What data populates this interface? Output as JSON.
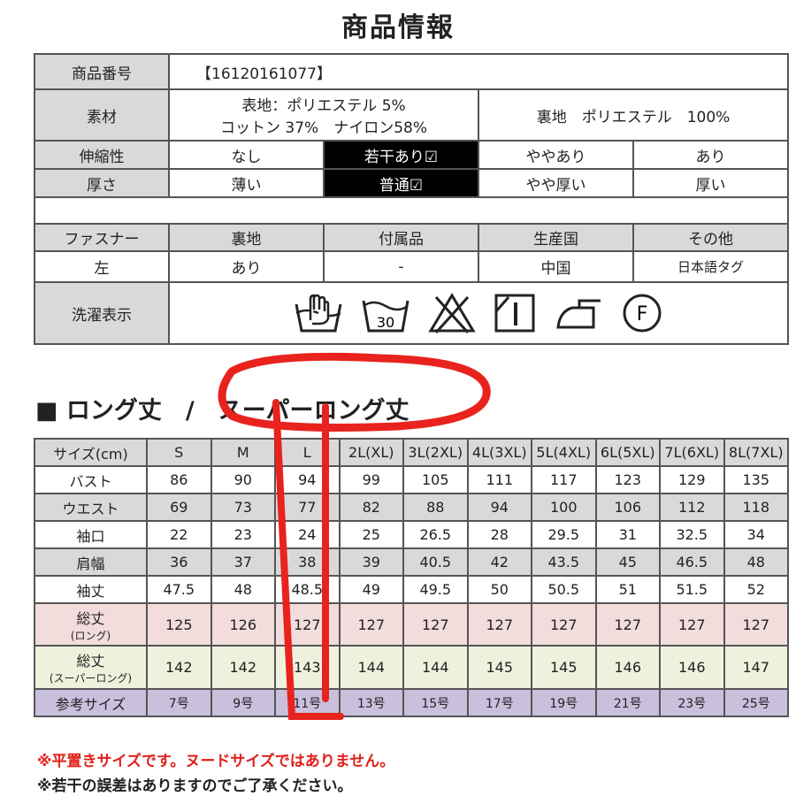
{
  "title": "商品情報",
  "info": {
    "product_no_label": "商品番号",
    "product_no": "【16120161077】",
    "material_label": "素材",
    "material_outer_1": "表地：ポリエステル 5%",
    "material_outer_2": "コットン 37%　ナイロン58%",
    "material_lining": "裏地　ポリエステル　100%",
    "stretch_label": "伸縮性",
    "stretch_options": [
      "なし",
      "若干あり☑",
      "ややあり",
      "あり"
    ],
    "stretch_selected": 1,
    "thickness_label": "厚さ",
    "thickness_options": [
      "薄い",
      "普通☑",
      "やや厚い",
      "厚い"
    ],
    "thickness_selected": 1
  },
  "info2": {
    "headers": [
      "ファスナー",
      "裏地",
      "付属品",
      "生産国",
      "その他"
    ],
    "values": [
      "左",
      "あり",
      "-",
      "中国",
      "日本語タグ"
    ],
    "care_label": "洗濯表示",
    "care_icons": [
      "hand-wash-icon",
      "wash-30-icon",
      "no-bleach-icon",
      "drip-dry-icon",
      "iron-low-icon",
      "dry-clean-f-icon"
    ],
    "wash_temp": "30",
    "dry_clean_mark": "F"
  },
  "size_heading": "■ ロング丈　/　スーパーロング丈",
  "sizes": {
    "header": [
      "サイズ(cm)",
      "S",
      "M",
      "L",
      "2L(XL)",
      "3L(2XL)",
      "4L(3XL)",
      "5L(4XL)",
      "6L(5XL)",
      "7L(6XL)",
      "8L(7XL)"
    ],
    "rows": [
      {
        "label": "バスト",
        "values": [
          "86",
          "90",
          "94",
          "99",
          "105",
          "111",
          "117",
          "123",
          "129",
          "135"
        ]
      },
      {
        "label": "ウエスト",
        "values": [
          "69",
          "73",
          "77",
          "82",
          "88",
          "94",
          "100",
          "106",
          "112",
          "118"
        ]
      },
      {
        "label": "袖口",
        "values": [
          "22",
          "23",
          "24",
          "25",
          "26.5",
          "28",
          "29.5",
          "31",
          "32.5",
          "34"
        ]
      },
      {
        "label": "肩幅",
        "values": [
          "36",
          "37",
          "38",
          "39",
          "40.5",
          "42",
          "43.5",
          "45",
          "46.5",
          "48"
        ]
      },
      {
        "label": "袖丈",
        "values": [
          "47.5",
          "48",
          "48.5",
          "49",
          "49.5",
          "50",
          "50.5",
          "51",
          "51.5",
          "52"
        ]
      },
      {
        "label": "総丈",
        "sub": "(ロング)",
        "values": [
          "125",
          "126",
          "127",
          "127",
          "127",
          "127",
          "127",
          "127",
          "127",
          "127"
        ]
      },
      {
        "label": "総丈",
        "sub": "(スーパーロング)",
        "values": [
          "142",
          "142",
          "143",
          "144",
          "144",
          "145",
          "145",
          "146",
          "146",
          "147"
        ]
      },
      {
        "label": "参考サイズ",
        "values": [
          "7号",
          "9号",
          "11号",
          "13号",
          "15号",
          "17号",
          "19号",
          "21号",
          "23号",
          "25号"
        ]
      }
    ]
  },
  "notes": {
    "note1": "※平置きサイズです。ヌードサイズではありません。",
    "note2": "※若干の誤差はありますのでご了承ください。",
    "note1_color": "#e0201a"
  },
  "annotation_color": "#e8231d"
}
